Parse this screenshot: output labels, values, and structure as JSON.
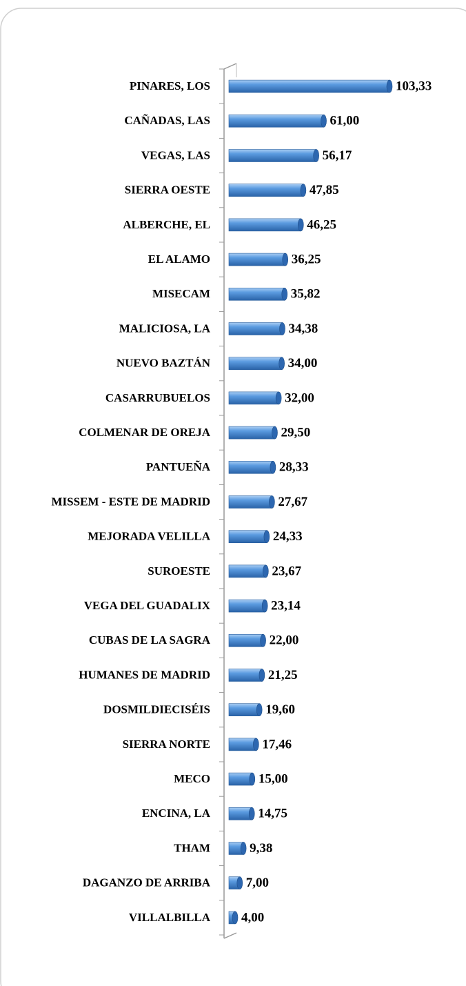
{
  "chart_data": {
    "type": "barh",
    "categories": [
      "PINARES, LOS",
      "CAÑADAS, LAS",
      "VEGAS, LAS",
      "SIERRA OESTE",
      "ALBERCHE, EL",
      "EL ALAMO",
      "MISECAM",
      "MALICIOSA, LA",
      "NUEVO BAZTÁN",
      "CASARRUBUELOS",
      "COLMENAR DE OREJA",
      "PANTUEÑA",
      "MISSEM - ESTE DE MADRID",
      "MEJORADA VELILLA",
      "SUROESTE",
      "VEGA DEL GUADALIX",
      "CUBAS DE LA SAGRA",
      "HUMANES DE MADRID",
      "DOSMILDIECISÉIS",
      "SIERRA NORTE",
      "MECO",
      "ENCINA, LA",
      "THAM",
      "DAGANZO DE ARRIBA",
      "VILLALBILLA"
    ],
    "values": [
      103.33,
      61.0,
      56.17,
      47.85,
      46.25,
      36.25,
      35.82,
      34.38,
      34.0,
      32.0,
      29.5,
      28.33,
      27.67,
      24.33,
      23.67,
      23.14,
      22.0,
      21.25,
      19.6,
      17.46,
      15.0,
      14.75,
      9.38,
      7.0,
      4.0
    ],
    "value_labels": [
      "103,33",
      "61,00",
      "56,17",
      "47,85",
      "46,25",
      "36,25",
      "35,82",
      "34,38",
      "34,00",
      "32,00",
      "29,50",
      "28,33",
      "27,67",
      "24,33",
      "23,67",
      "23,14",
      "22,00",
      "21,25",
      "19,60",
      "17,46",
      "15,00",
      "14,75",
      "9,38",
      "7,00",
      "4,00"
    ],
    "color": "#4a8fd8"
  }
}
